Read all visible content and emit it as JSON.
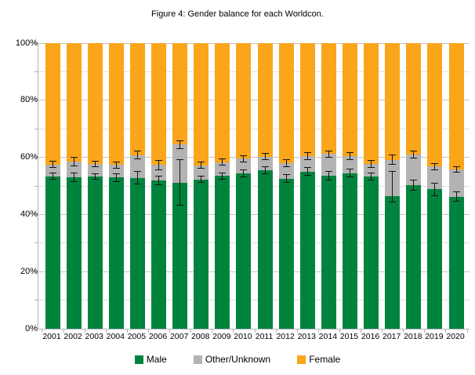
{
  "title": "Figure 4: Gender balance for each Worldcon.",
  "colors": {
    "male": "#00843D",
    "other_unknown": "#B3B3B3",
    "female": "#FAA51A",
    "error_bar": "#141414",
    "grid_major": "#C6C6C6",
    "grid_minor": "#DEDEDE",
    "axis": "#B3B3B3"
  },
  "chart_data": {
    "type": "bar",
    "stacked": true,
    "title": "Figure 4: Gender balance for each Worldcon.",
    "xlabel": "",
    "ylabel": "",
    "ylim": [
      0,
      100
    ],
    "ytick_values": [
      0,
      20,
      40,
      60,
      80,
      100
    ],
    "ytick_labels": [
      "0%",
      "20%",
      "40%",
      "60%",
      "80%",
      "100%"
    ],
    "minor_grid_step": 10,
    "grid": true,
    "legend_position": "bottom",
    "categories": [
      "2001",
      "2002",
      "2003",
      "2004",
      "2005",
      "2006",
      "2007",
      "2008",
      "2009",
      "2010",
      "2011",
      "2012",
      "2013",
      "2014",
      "2015",
      "2016",
      "2017",
      "2018",
      "2019",
      "2020"
    ],
    "series": [
      {
        "name": "Male",
        "color": "#00843D",
        "values": [
          53.4,
          53.0,
          53.3,
          52.9,
          52.8,
          51.9,
          51.0,
          52.3,
          53.5,
          54.5,
          55.5,
          52.6,
          55.0,
          53.5,
          54.5,
          53.3,
          46.4,
          50.3,
          48.8,
          46.2
        ]
      },
      {
        "name": "Other/Unknown",
        "color": "#B3B3B3",
        "values": [
          4.1,
          5.6,
          4.3,
          4.4,
          8.0,
          5.4,
          13.5,
          4.9,
          4.8,
          5.0,
          4.8,
          5.3,
          5.5,
          7.7,
          6.0,
          4.5,
          12.6,
          10.7,
          8.0,
          9.6
        ]
      },
      {
        "name": "Female",
        "color": "#FAA51A",
        "values": [
          42.5,
          41.4,
          42.4,
          42.7,
          39.2,
          42.7,
          35.5,
          42.8,
          41.7,
          40.5,
          39.7,
          42.1,
          39.5,
          38.8,
          39.5,
          42.2,
          41.0,
          39.0,
          43.2,
          44.2
        ]
      }
    ],
    "error_bars": {
      "male_top": [
        [
          52.2,
          54.8
        ],
        [
          51.5,
          54.6
        ],
        [
          52.1,
          54.5
        ],
        [
          51.5,
          54.3
        ],
        [
          50.5,
          55.1
        ],
        [
          50.3,
          53.5
        ],
        [
          43.2,
          59.4
        ],
        [
          51.0,
          53.6
        ],
        [
          52.2,
          54.8
        ],
        [
          53.1,
          55.9
        ],
        [
          54.1,
          56.9
        ],
        [
          51.1,
          54.1
        ],
        [
          53.5,
          56.5
        ],
        [
          51.8,
          55.2
        ],
        [
          53.0,
          56.0
        ],
        [
          52.0,
          54.6
        ],
        [
          44.3,
          55.1
        ],
        [
          48.4,
          52.2
        ],
        [
          46.4,
          51.2
        ],
        [
          44.4,
          48.0
        ]
      ],
      "male_plus_other_top": [
        [
          56.3,
          58.7
        ],
        [
          57.0,
          60.1
        ],
        [
          56.5,
          58.7
        ],
        [
          56.1,
          58.5
        ],
        [
          59.3,
          62.3
        ],
        [
          55.6,
          59.0
        ],
        [
          63.0,
          66.0
        ],
        [
          56.0,
          58.4
        ],
        [
          57.1,
          59.5
        ],
        [
          58.2,
          60.8
        ],
        [
          59.0,
          61.6
        ],
        [
          56.5,
          59.3
        ],
        [
          59.2,
          61.8
        ],
        [
          59.9,
          62.5
        ],
        [
          59.2,
          61.8
        ],
        [
          56.4,
          59.2
        ],
        [
          57.4,
          60.9
        ],
        [
          59.5,
          62.5
        ],
        [
          55.5,
          58.1
        ],
        [
          54.6,
          57.0
        ]
      ]
    }
  }
}
